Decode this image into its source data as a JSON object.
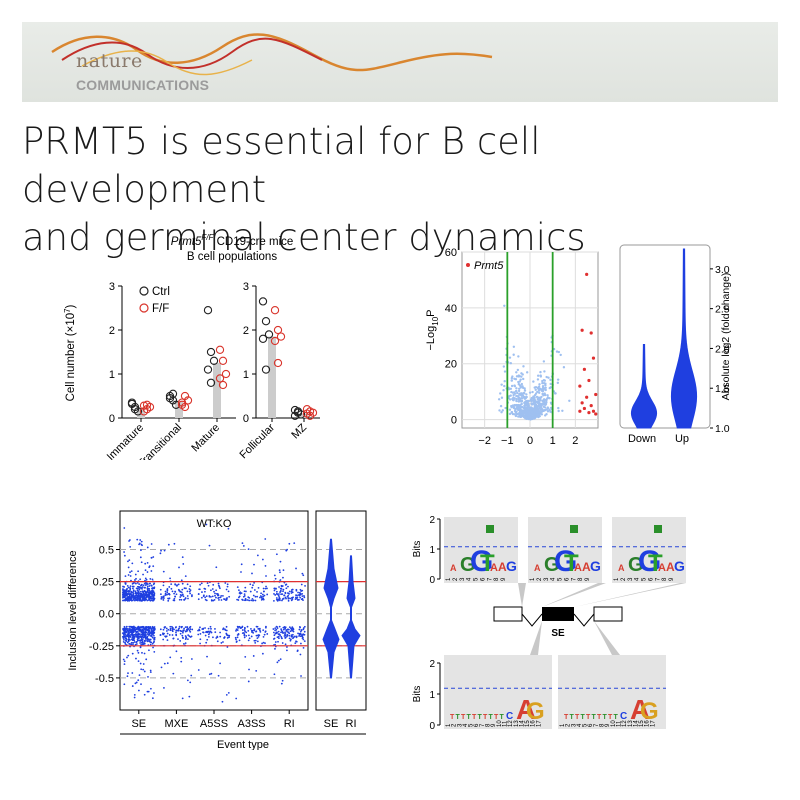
{
  "journal": {
    "name_top": "nature",
    "name_bottom": "COMMUNICATIONS"
  },
  "title": {
    "line1": "PRMT5 is essential for B cell development",
    "line2": "and germinal center dynamics"
  },
  "colors": {
    "ctrl": "#222222",
    "ff": "#d9342b",
    "bar": "#cccccc",
    "volcano_point": "#9fc0f0",
    "volcano_sig": "#e03030",
    "threshold": "#2aa02a",
    "violin": "#1f3fe0",
    "scatter": "#1f3fe0",
    "ref_line": "#e03030",
    "logo_bg": "#e4e4e4"
  },
  "chart_data": [
    {
      "type": "bar",
      "id": "b_cell_populations",
      "title_gene": "Prmt5",
      "title_sup": "F/F",
      "title_rest": " CD19-cre mice",
      "subtitle": "B cell populations",
      "ylabel": "Cell number (×10",
      "ylabel_sup": "7",
      "ylabel_end": ")",
      "legend": [
        "Ctrl",
        "F/F"
      ],
      "panels": [
        {
          "ylim": [
            0,
            3
          ],
          "yticks": [
            "0",
            "1",
            "2",
            "3"
          ],
          "categories": [
            "Immature",
            "Transitional",
            "Mature"
          ],
          "bar_values": [
            0.22,
            0.38,
            1.25
          ],
          "ctrl": [
            [
              0.35,
              0.25,
              0.15,
              0.32,
              0.2
            ],
            [
              0.5,
              0.4,
              0.3,
              0.45,
              0.55
            ],
            [
              2.45,
              1.5,
              1.3,
              1.1,
              0.8
            ]
          ],
          "ff": [
            [
              0.28,
              0.2,
              0.25,
              0.15,
              0.3
            ],
            [
              0.35,
              0.5,
              0.4,
              0.3,
              0.25
            ],
            [
              1.55,
              1.3,
              1.0,
              0.9,
              0.75
            ]
          ]
        },
        {
          "ylim": [
            0,
            3
          ],
          "yticks": [
            "0",
            "1",
            "2",
            "3"
          ],
          "categories": [
            "Follicular",
            "MZ"
          ],
          "bar_values": [
            1.85,
            0.1
          ],
          "ctrl": [
            [
              2.65,
              2.2,
              1.9,
              1.8,
              1.1
            ],
            [
              0.18,
              0.12,
              0.08,
              0.05,
              0.15
            ]
          ],
          "ff": [
            [
              2.45,
              2.0,
              1.85,
              1.75,
              1.25
            ],
            [
              0.2,
              0.15,
              0.12,
              0.1,
              0.05
            ]
          ]
        }
      ]
    },
    {
      "type": "scatter",
      "id": "volcano",
      "legend": "Prmt5",
      "ylabel_main": "−Log",
      "ylabel_sub": "10",
      "ylabel_end": "P",
      "xlim": [
        -3,
        3
      ],
      "ylim": [
        -3,
        60
      ],
      "xticks": [
        -2,
        -1,
        0,
        1,
        2
      ],
      "yticks": [
        0,
        20,
        40,
        60
      ],
      "thresholds_x": [
        -1,
        1
      ],
      "sig_points": [
        [
          2.5,
          52
        ],
        [
          2.3,
          32
        ],
        [
          2.7,
          31
        ],
        [
          2.8,
          22
        ],
        [
          2.4,
          18
        ],
        [
          2.6,
          14
        ],
        [
          2.2,
          12
        ],
        [
          2.9,
          9
        ],
        [
          2.5,
          8
        ],
        [
          2.3,
          6
        ],
        [
          2.7,
          5
        ],
        [
          2.4,
          4
        ],
        [
          2.8,
          3
        ],
        [
          2.6,
          2.5
        ],
        [
          2.2,
          3
        ],
        [
          2.9,
          2
        ]
      ]
    },
    {
      "type": "violin",
      "id": "abs_log2_fc",
      "ylabel": "Absolute log2 (fold change)",
      "categories": [
        "Down",
        "Up"
      ],
      "ylim": [
        1.0,
        3.3
      ],
      "yticks": [
        "1.0",
        "1.5",
        "2.0",
        "2.5",
        "3.0"
      ],
      "ranges": [
        [
          1.0,
          2.05
        ],
        [
          1.0,
          3.25
        ]
      ]
    },
    {
      "type": "scatter",
      "id": "inclusion_level",
      "annotation": "WT:KO",
      "ylabel": "Inclusion level difference",
      "xlabel": "Event type",
      "categories": [
        "SE",
        "MXE",
        "A5SS",
        "A3SS",
        "RI"
      ],
      "violin_categories": [
        "SE",
        "RI"
      ],
      "ylim": [
        -0.75,
        0.8
      ],
      "yticks": [
        "0.5",
        "0.25",
        "0.0",
        "-0.25",
        "-0.5"
      ],
      "ytick_values": [
        0.5,
        0.25,
        0.0,
        -0.25,
        -0.5
      ],
      "ref_lines": [
        0.25,
        -0.25
      ],
      "point_counts": [
        900,
        200,
        140,
        160,
        260
      ]
    },
    {
      "type": "other",
      "id": "splice_motifs",
      "ylabel": "Bits",
      "yticks": [
        "0",
        "1",
        "2"
      ],
      "exon_label": "SE",
      "top_positions": [
        "1",
        "2",
        "3",
        "4",
        "5",
        "6",
        "7",
        "8",
        "9"
      ],
      "bottom_positions": [
        "1",
        "2",
        "3",
        "4",
        "5",
        "6",
        "7",
        "8",
        "9",
        "10",
        "11",
        "12",
        "13",
        "14",
        "15",
        "16",
        "17"
      ],
      "top_letters": [
        "A",
        "G",
        "G",
        "T",
        "A",
        "A",
        "G"
      ],
      "bottom_letters": [
        "C",
        "A",
        "G"
      ]
    }
  ]
}
